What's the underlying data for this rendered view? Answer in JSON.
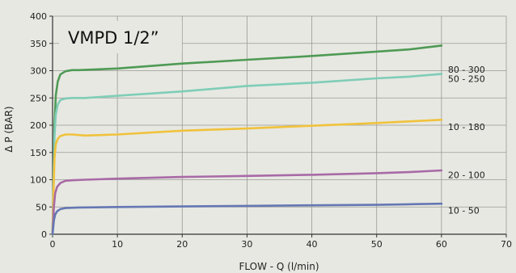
{
  "chart_data": {
    "type": "line",
    "title": "VMPD 1/2”",
    "xlabel": "FLOW - Q (l/min)",
    "ylabel": "Δ P (BAR)",
    "xlim": [
      0,
      70
    ],
    "ylim": [
      0,
      400
    ],
    "xticks": [
      0,
      10,
      20,
      30,
      40,
      50,
      60,
      70
    ],
    "yticks": [
      0,
      50,
      100,
      150,
      200,
      250,
      300,
      350,
      400
    ],
    "grid": true,
    "legend": "right-end labels",
    "series": [
      {
        "name": "80 - 300",
        "color": "#4f9a55",
        "points": [
          [
            0,
            0
          ],
          [
            0.15,
            100
          ],
          [
            0.3,
            200
          ],
          [
            0.5,
            255
          ],
          [
            0.8,
            280
          ],
          [
            1.2,
            293
          ],
          [
            2,
            299
          ],
          [
            3,
            301
          ],
          [
            4,
            301
          ],
          [
            10,
            304
          ],
          [
            20,
            313
          ],
          [
            30,
            320
          ],
          [
            40,
            327
          ],
          [
            50,
            335
          ],
          [
            55,
            339
          ],
          [
            60,
            346
          ]
        ]
      },
      {
        "name": "50 - 250",
        "color": "#7fcdb7",
        "points": [
          [
            0,
            0
          ],
          [
            0.15,
            100
          ],
          [
            0.3,
            180
          ],
          [
            0.5,
            220
          ],
          [
            0.8,
            238
          ],
          [
            1.2,
            246
          ],
          [
            2,
            249
          ],
          [
            3,
            250
          ],
          [
            5,
            250
          ],
          [
            10,
            254
          ],
          [
            20,
            262
          ],
          [
            30,
            272
          ],
          [
            40,
            278
          ],
          [
            50,
            286
          ],
          [
            55,
            289
          ],
          [
            60,
            294
          ]
        ]
      },
      {
        "name": "10 - 180",
        "color": "#f0c23c",
        "points": [
          [
            0,
            0
          ],
          [
            0.15,
            80
          ],
          [
            0.3,
            140
          ],
          [
            0.5,
            165
          ],
          [
            0.8,
            175
          ],
          [
            1.2,
            180
          ],
          [
            2,
            183
          ],
          [
            3,
            183
          ],
          [
            5,
            181
          ],
          [
            10,
            183
          ],
          [
            20,
            190
          ],
          [
            30,
            194
          ],
          [
            40,
            199
          ],
          [
            50,
            204
          ],
          [
            55,
            207
          ],
          [
            60,
            210
          ]
        ]
      },
      {
        "name": "20 - 100",
        "color": "#a86aa6",
        "points": [
          [
            0,
            0
          ],
          [
            0.2,
            50
          ],
          [
            0.4,
            75
          ],
          [
            0.7,
            87
          ],
          [
            1.2,
            94
          ],
          [
            2,
            98
          ],
          [
            3,
            99
          ],
          [
            5,
            100
          ],
          [
            10,
            102
          ],
          [
            20,
            105
          ],
          [
            30,
            107
          ],
          [
            40,
            109
          ],
          [
            50,
            112
          ],
          [
            55,
            114
          ],
          [
            60,
            117
          ]
        ]
      },
      {
        "name": "10 - 50",
        "color": "#6577b3",
        "points": [
          [
            0,
            0
          ],
          [
            0.2,
            25
          ],
          [
            0.4,
            36
          ],
          [
            0.7,
            42
          ],
          [
            1.2,
            46
          ],
          [
            2,
            48
          ],
          [
            4,
            49
          ],
          [
            10,
            50
          ],
          [
            20,
            51
          ],
          [
            30,
            52
          ],
          [
            40,
            53
          ],
          [
            50,
            54
          ],
          [
            55,
            55
          ],
          [
            60,
            56
          ]
        ]
      }
    ]
  }
}
